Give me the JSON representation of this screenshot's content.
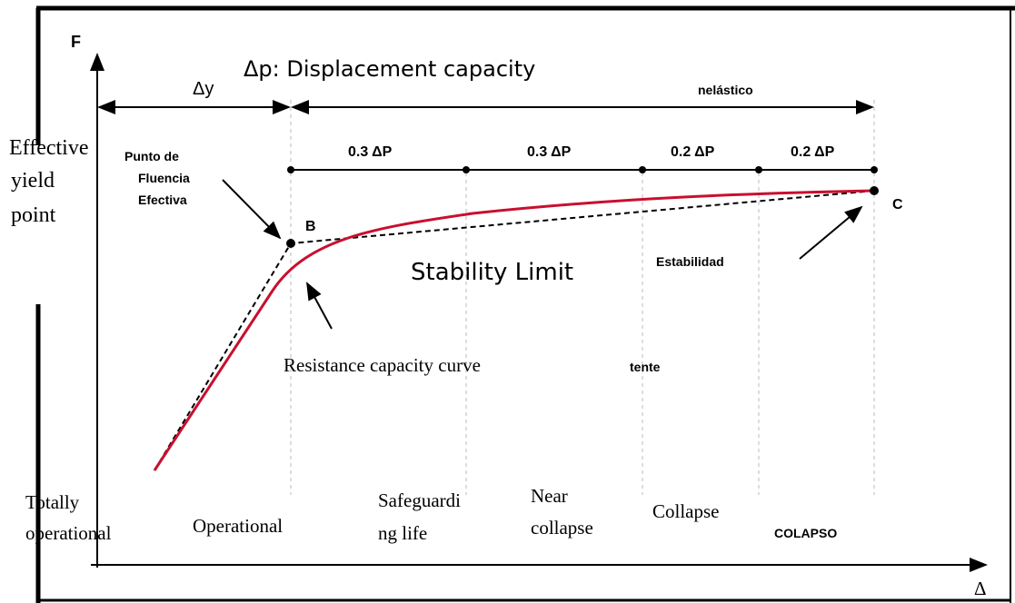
{
  "axes": {
    "y_label": "F",
    "x_label": "Δ"
  },
  "top": {
    "delta_y": "Δy",
    "delta_p": "Δp: Displacement capacity",
    "inelastic": "nelástico"
  },
  "divisions": [
    "0.3 ΔP",
    "0.3 ΔP",
    "0.2 ΔP",
    "0.2 ΔP"
  ],
  "points": {
    "B": "B",
    "C": "C"
  },
  "annotations": {
    "effective_yield_point": [
      "Effective",
      "yield",
      "point"
    ],
    "punto_fluencia": [
      "Punto de",
      "Fluencia",
      "Efectiva"
    ],
    "stability_limit": "Stability Limit",
    "estabilidad": "Estabilidad",
    "resistance_curve": "Resistance capacity curve",
    "tente": "tente"
  },
  "levels": [
    [
      "Totally",
      "operational"
    ],
    [
      "Operational"
    ],
    [
      "Safeguardi",
      "ng life"
    ],
    [
      "Near",
      "collapse"
    ],
    [
      "Collapse"
    ],
    [
      "COLAPSO"
    ]
  ]
}
